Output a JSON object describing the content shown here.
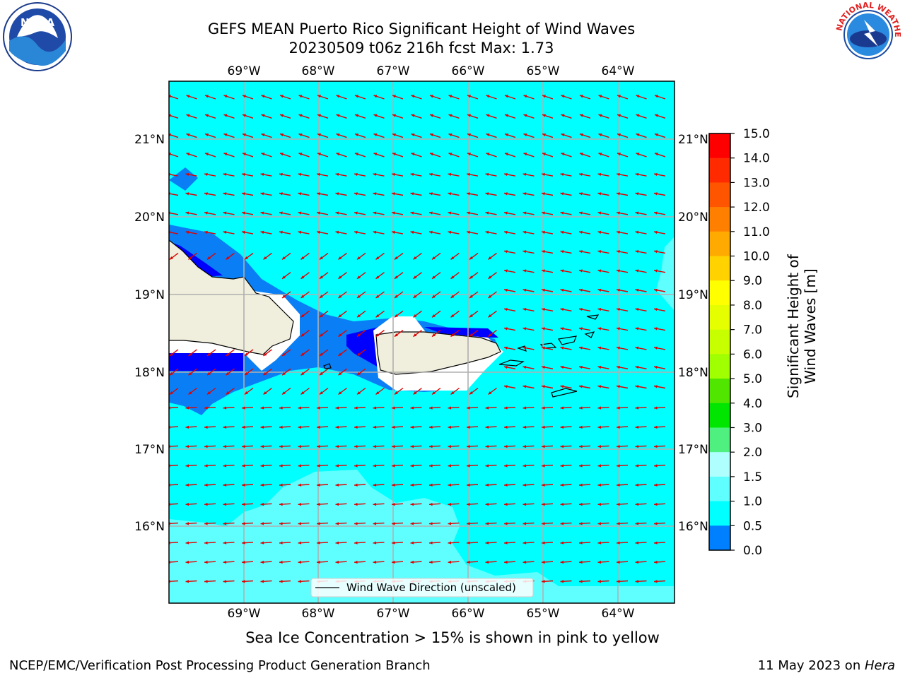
{
  "title": {
    "line1": "GEFS MEAN Puerto Rico Significant Height of Wind Waves",
    "line2": "20230509 t06z 216h fcst   Max: 1.73"
  },
  "map": {
    "lon_labels": [
      "69°W",
      "68°W",
      "67°W",
      "66°W",
      "65°W",
      "64°W"
    ],
    "lat_labels": [
      "21°N",
      "20°N",
      "19°N",
      "18°N",
      "17°N",
      "16°N"
    ],
    "legend_label": "Wind Wave Direction (unscaled)"
  },
  "colorbar": {
    "title": "Significant Height of Wind Waves [m]",
    "ticks": [
      "15.0",
      "14.0",
      "13.0",
      "12.0",
      "11.0",
      "10.0",
      "9.0",
      "8.0",
      "7.0",
      "6.0",
      "5.0",
      "4.0",
      "3.0",
      "2.0",
      "1.5",
      "1.0",
      "0.5",
      "0.0"
    ],
    "colors": [
      "#ff0000",
      "#ff2a00",
      "#ff5500",
      "#ff8000",
      "#ffaa00",
      "#ffd200",
      "#ffff00",
      "#e6ff00",
      "#c8ff00",
      "#a0ff00",
      "#50e600",
      "#00e600",
      "#50f080",
      "#b0ffff",
      "#60ffff",
      "#00ffff",
      "#0080ff",
      "#0000ff"
    ]
  },
  "caption": "Sea Ice Concentration > 15% is shown in pink to yellow",
  "footer": {
    "left": "NCEP/EMC/Verification Post Processing Product Generation Branch",
    "right_prefix": "11 May 2023 on ",
    "right_host": "Hera"
  },
  "logos": {
    "noaa": "NOAA",
    "nws": "NATIONAL WEATHER SERVICE"
  }
}
